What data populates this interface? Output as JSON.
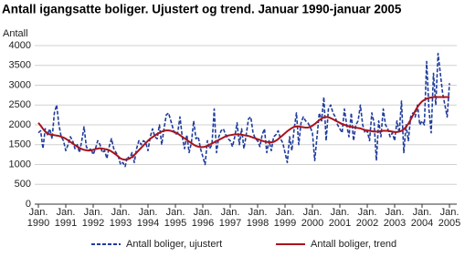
{
  "chart_data": {
    "type": "line",
    "title": "Antall igangsatte boliger. Ujustert og trend. Januar 1990-januar 2005",
    "y_label": "Antall",
    "x": [
      "1990-01",
      "1990-02",
      "1990-03",
      "1990-04",
      "1990-05",
      "1990-06",
      "1990-07",
      "1990-08",
      "1990-09",
      "1990-10",
      "1990-11",
      "1990-12",
      "1991-01",
      "1991-02",
      "1991-03",
      "1991-04",
      "1991-05",
      "1991-06",
      "1991-07",
      "1991-08",
      "1991-09",
      "1991-10",
      "1991-11",
      "1991-12",
      "1992-01",
      "1992-02",
      "1992-03",
      "1992-04",
      "1992-05",
      "1992-06",
      "1992-07",
      "1992-08",
      "1992-09",
      "1992-10",
      "1992-11",
      "1992-12",
      "1993-01",
      "1993-02",
      "1993-03",
      "1993-04",
      "1993-05",
      "1993-06",
      "1993-07",
      "1993-08",
      "1993-09",
      "1993-10",
      "1993-11",
      "1993-12",
      "1994-01",
      "1994-02",
      "1994-03",
      "1994-04",
      "1994-05",
      "1994-06",
      "1994-07",
      "1994-08",
      "1994-09",
      "1994-10",
      "1994-11",
      "1994-12",
      "1995-01",
      "1995-02",
      "1995-03",
      "1995-04",
      "1995-05",
      "1995-06",
      "1995-07",
      "1995-08",
      "1995-09",
      "1995-10",
      "1995-11",
      "1995-12",
      "1996-01",
      "1996-02",
      "1996-03",
      "1996-04",
      "1996-05",
      "1996-06",
      "1996-07",
      "1996-08",
      "1996-09",
      "1996-10",
      "1996-11",
      "1996-12",
      "1997-01",
      "1997-02",
      "1997-03",
      "1997-04",
      "1997-05",
      "1997-06",
      "1997-07",
      "1997-08",
      "1997-09",
      "1997-10",
      "1997-11",
      "1997-12",
      "1998-01",
      "1998-02",
      "1998-03",
      "1998-04",
      "1998-05",
      "1998-06",
      "1998-07",
      "1998-08",
      "1998-09",
      "1998-10",
      "1998-11",
      "1998-12",
      "1999-01",
      "1999-02",
      "1999-03",
      "1999-04",
      "1999-05",
      "1999-06",
      "1999-07",
      "1999-08",
      "1999-09",
      "1999-10",
      "1999-11",
      "1999-12",
      "2000-01",
      "2000-02",
      "2000-03",
      "2000-04",
      "2000-05",
      "2000-06",
      "2000-07",
      "2000-08",
      "2000-09",
      "2000-10",
      "2000-11",
      "2000-12",
      "2001-01",
      "2001-02",
      "2001-03",
      "2001-04",
      "2001-05",
      "2001-06",
      "2001-07",
      "2001-08",
      "2001-09",
      "2001-10",
      "2001-11",
      "2001-12",
      "2002-01",
      "2002-02",
      "2002-03",
      "2002-04",
      "2002-05",
      "2002-06",
      "2002-07",
      "2002-08",
      "2002-09",
      "2002-10",
      "2002-11",
      "2002-12",
      "2003-01",
      "2003-02",
      "2003-03",
      "2003-04",
      "2003-05",
      "2003-06",
      "2003-07",
      "2003-08",
      "2003-09",
      "2003-10",
      "2003-11",
      "2003-12",
      "2004-01",
      "2004-02",
      "2004-03",
      "2004-04",
      "2004-05",
      "2004-06",
      "2004-07",
      "2004-08",
      "2004-09",
      "2004-10",
      "2004-11",
      "2004-12",
      "2005-01"
    ],
    "series": [
      {
        "name": "Antall boliger, ujustert",
        "color": "#1f3c9c",
        "dashed": true,
        "values": [
          1800,
          1850,
          1400,
          1900,
          1750,
          1900,
          1650,
          2300,
          2500,
          2000,
          1700,
          1600,
          1350,
          1500,
          1700,
          1600,
          1400,
          1500,
          1300,
          1600,
          1950,
          1450,
          1350,
          1400,
          1250,
          1400,
          1600,
          1500,
          1300,
          1350,
          1150,
          1450,
          1650,
          1400,
          1300,
          1200,
          1000,
          1050,
          950,
          1200,
          1150,
          1300,
          1050,
          1400,
          1600,
          1500,
          1600,
          1550,
          1350,
          1700,
          1900,
          1700,
          1650,
          2000,
          1500,
          1900,
          2250,
          2300,
          2100,
          1900,
          1750,
          1800,
          2200,
          1700,
          1400,
          1750,
          1300,
          1550,
          2100,
          1650,
          1700,
          1400,
          1200,
          1000,
          1600,
          1400,
          1500,
          2400,
          1300,
          1700,
          1850,
          1900,
          1750,
          1650,
          1600,
          1450,
          1700,
          2050,
          1500,
          1900,
          1400,
          1750,
          2150,
          2200,
          1800,
          1650,
          1600,
          1450,
          1750,
          1900,
          1300,
          1600,
          1350,
          1700,
          1750,
          1850,
          1650,
          1550,
          1300,
          1050,
          1700,
          1350,
          1900,
          2300,
          1500,
          2050,
          2200,
          2100,
          2050,
          1950,
          1800,
          1100,
          1700,
          2300,
          2100,
          2700,
          1600,
          2400,
          2500,
          2300,
          2200,
          2000,
          1900,
          1800,
          2400,
          2000,
          1700,
          2300,
          1600,
          2000,
          2100,
          2500,
          2000,
          1800,
          1850,
          1600,
          2300,
          2050,
          1100,
          2100,
          1700,
          2400,
          2000,
          1900,
          1700,
          1800,
          1600,
          2100,
          1800,
          2600,
          1300,
          2000,
          1600,
          2200,
          2300,
          2200,
          2500,
          2000,
          2100,
          2000,
          3600,
          2400,
          1800,
          3300,
          2500,
          3800,
          3300,
          2800,
          2500,
          2200,
          3050
        ]
      },
      {
        "name": "Antall boliger, trend",
        "color": "#a8141c",
        "dashed": false,
        "values": [
          2050,
          1980,
          1900,
          1830,
          1780,
          1760,
          1750,
          1740,
          1730,
          1720,
          1700,
          1680,
          1650,
          1610,
          1570,
          1530,
          1490,
          1450,
          1420,
          1390,
          1370,
          1360,
          1350,
          1360,
          1370,
          1390,
          1400,
          1410,
          1400,
          1390,
          1380,
          1360,
          1330,
          1290,
          1250,
          1200,
          1150,
          1130,
          1120,
          1130,
          1150,
          1190,
          1240,
          1300,
          1360,
          1420,
          1480,
          1540,
          1600,
          1650,
          1690,
          1730,
          1770,
          1800,
          1830,
          1850,
          1860,
          1860,
          1850,
          1830,
          1810,
          1780,
          1740,
          1700,
          1660,
          1620,
          1580,
          1540,
          1500,
          1470,
          1450,
          1440,
          1440,
          1450,
          1470,
          1500,
          1530,
          1560,
          1590,
          1620,
          1650,
          1680,
          1710,
          1730,
          1740,
          1750,
          1760,
          1760,
          1760,
          1750,
          1740,
          1730,
          1720,
          1700,
          1680,
          1660,
          1640,
          1620,
          1600,
          1580,
          1570,
          1560,
          1560,
          1570,
          1600,
          1640,
          1690,
          1740,
          1790,
          1840,
          1880,
          1920,
          1950,
          1960,
          1960,
          1950,
          1940,
          1930,
          1930,
          1950,
          1980,
          2020,
          2070,
          2120,
          2160,
          2190,
          2200,
          2190,
          2170,
          2140,
          2110,
          2080,
          2050,
          2020,
          2000,
          1980,
          1960,
          1950,
          1940,
          1930,
          1920,
          1910,
          1890,
          1870,
          1860,
          1850,
          1840,
          1830,
          1830,
          1830,
          1840,
          1850,
          1850,
          1850,
          1840,
          1830,
          1820,
          1820,
          1830,
          1850,
          1890,
          1950,
          2030,
          2130,
          2240,
          2350,
          2450,
          2530,
          2590,
          2630,
          2660,
          2680,
          2690,
          2700,
          2700,
          2700,
          2700,
          2700,
          2700,
          2700,
          2700
        ]
      }
    ],
    "ylim": [
      0,
      4000
    ],
    "yticks": [
      0,
      500,
      1000,
      1500,
      2000,
      2500,
      3000,
      3500,
      4000
    ],
    "xticks": [
      {
        "value": "1990-01",
        "label": "Jan.\n1990"
      },
      {
        "value": "1991-01",
        "label": "Jan.\n1991"
      },
      {
        "value": "1992-01",
        "label": "Jan.\n1992"
      },
      {
        "value": "1993-01",
        "label": "Jan.\n1993"
      },
      {
        "value": "1994-01",
        "label": "Jan.\n1994"
      },
      {
        "value": "1995-01",
        "label": "Jan.\n1995"
      },
      {
        "value": "1996-01",
        "label": "Jan.\n1996"
      },
      {
        "value": "1997-01",
        "label": "Jan.\n1997"
      },
      {
        "value": "1998-01",
        "label": "Jan.\n1998"
      },
      {
        "value": "1999-01",
        "label": "Jan.\n1999"
      },
      {
        "value": "2000-01",
        "label": "Jan.\n2000"
      },
      {
        "value": "2001-01",
        "label": "Jan.\n2001"
      },
      {
        "value": "2002-01",
        "label": "Jan.\n2002"
      },
      {
        "value": "2003-01",
        "label": "Jan.\n2003"
      },
      {
        "value": "2004-01",
        "label": "Jan.\n2004"
      },
      {
        "value": "2005-01",
        "label": "Jan.\n2005"
      }
    ],
    "grid": true,
    "legend": "bottom"
  }
}
